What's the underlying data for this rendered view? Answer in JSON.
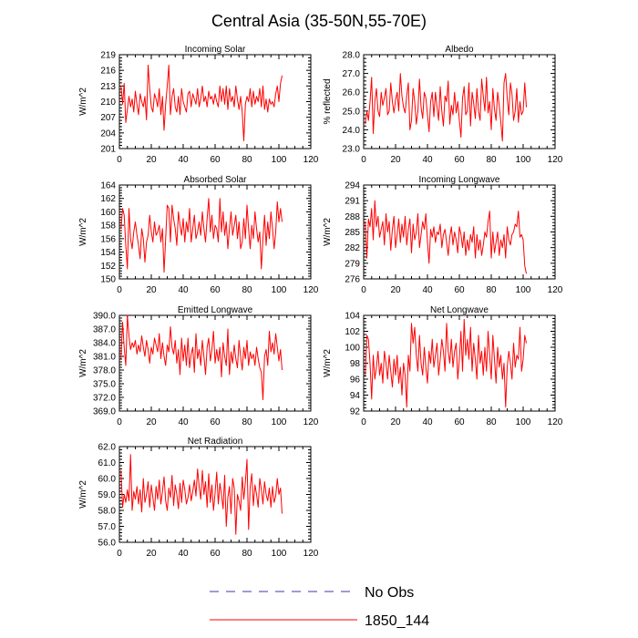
{
  "title": "Central Asia (35-50N,55-70E)",
  "legend": [
    {
      "label": "No Obs",
      "color": "#3838a8",
      "dash": "dashed"
    },
    {
      "label": "1850_144",
      "color": "#ff0000",
      "dash": "solid"
    }
  ],
  "chart_data": [
    {
      "type": "line",
      "title": "Incoming Solar",
      "ylabel": "W/m^2",
      "xlim": [
        0,
        120
      ],
      "ylim": [
        201,
        219
      ],
      "yticks": [
        "201",
        "204",
        "207",
        "210",
        "213",
        "216",
        "219"
      ],
      "xticks": [
        "0",
        "20",
        "40",
        "60",
        "80",
        "100",
        "120"
      ],
      "series": [
        {
          "name": "1850_144",
          "color": "#ff0000",
          "x_start": 1,
          "values": [
            213.0,
            209.5,
            213.5,
            206.0,
            208.5,
            211.0,
            209.0,
            210.5,
            208.0,
            212.0,
            209.5,
            207.5,
            211.5,
            210.0,
            209.0,
            211.0,
            206.5,
            217.0,
            212.5,
            209.0,
            208.0,
            211.5,
            210.5,
            209.0,
            212.5,
            207.5,
            211.0,
            204.5,
            209.5,
            213.0,
            217.0,
            207.5,
            211.0,
            212.5,
            209.0,
            208.0,
            211.0,
            207.5,
            212.5,
            210.0,
            209.0,
            208.0,
            211.5,
            212.0,
            209.0,
            211.5,
            210.5,
            209.5,
            212.5,
            209.0,
            210.5,
            213.0,
            210.0,
            211.0,
            209.0,
            212.0,
            210.5,
            211.0,
            209.5,
            211.5,
            210.0,
            209.0,
            213.0,
            210.0,
            212.5,
            209.5,
            213.0,
            208.5,
            212.5,
            210.0,
            211.0,
            209.0,
            213.0,
            210.5,
            208.5,
            211.0,
            208.0,
            202.5,
            209.5,
            211.0,
            210.0,
            212.5,
            209.0,
            212.0,
            209.5,
            211.0,
            210.0,
            212.5,
            209.0,
            213.0,
            208.5,
            210.5,
            208.0,
            210.5,
            209.5,
            210.0,
            209.0,
            211.5,
            213.0,
            210.0,
            213.5,
            215.0
          ]
        }
      ]
    },
    {
      "type": "line",
      "title": "Albedo",
      "ylabel": "% reflected",
      "xlim": [
        0,
        120
      ],
      "ylim": [
        23.0,
        28.0
      ],
      "yticks": [
        "23.0",
        "24.0",
        "25.0",
        "26.0",
        "27.0",
        "28.0"
      ],
      "xticks": [
        "0",
        "20",
        "40",
        "60",
        "80",
        "100",
        "120"
      ],
      "series": [
        {
          "name": "1850_144",
          "color": "#ff0000",
          "x_start": 1,
          "values": [
            24.3,
            25.0,
            24.5,
            25.5,
            26.8,
            23.8,
            25.5,
            26.2,
            25.0,
            24.7,
            26.0,
            25.3,
            25.7,
            26.2,
            24.8,
            25.0,
            26.5,
            25.5,
            24.9,
            25.6,
            26.0,
            25.0,
            27.0,
            25.8,
            25.2,
            24.9,
            25.8,
            26.5,
            24.0,
            24.5,
            26.2,
            25.5,
            24.3,
            25.0,
            26.7,
            25.2,
            24.6,
            26.0,
            25.7,
            24.8,
            23.9,
            25.5,
            26.0,
            24.7,
            26.0,
            25.2,
            24.5,
            26.3,
            25.0,
            24.2,
            25.8,
            25.5,
            26.6,
            24.3,
            25.3,
            24.8,
            26.0,
            24.9,
            25.5,
            24.5,
            23.6,
            25.7,
            26.3,
            24.8,
            25.0,
            26.5,
            24.2,
            26.0,
            25.4,
            24.6,
            26.2,
            25.0,
            24.5,
            26.7,
            25.8,
            25.0,
            26.8,
            24.9,
            25.5,
            24.0,
            26.2,
            25.1,
            24.5,
            26.0,
            25.3,
            24.4,
            23.4,
            26.5,
            27.0,
            25.7,
            24.8,
            26.5,
            25.9,
            24.5,
            25.0,
            26.2,
            24.4,
            25.5,
            24.8,
            25.0,
            26.5,
            25.2
          ]
        }
      ]
    },
    {
      "type": "line",
      "title": "Absorbed Solar",
      "ylabel": "W/m^2",
      "xlim": [
        0,
        120
      ],
      "ylim": [
        150,
        164
      ],
      "yticks": [
        "150",
        "152",
        "154",
        "156",
        "158",
        "160",
        "162",
        "164"
      ],
      "xticks": [
        "0",
        "20",
        "40",
        "60",
        "80",
        "100",
        "120"
      ],
      "series": [
        {
          "name": "1850_144",
          "color": "#ff0000",
          "x_start": 1,
          "values": [
            157.5,
            160.5,
            159.5,
            155.0,
            151.5,
            160.5,
            156.0,
            154.5,
            157.0,
            158.5,
            156.5,
            155.0,
            153.0,
            157.5,
            156.0,
            152.5,
            155.5,
            156.5,
            159.5,
            157.0,
            155.5,
            158.5,
            156.5,
            157.0,
            158.0,
            155.5,
            157.5,
            151.0,
            156.0,
            161.0,
            160.5,
            155.5,
            161.0,
            159.0,
            157.5,
            155.0,
            160.0,
            158.0,
            156.5,
            159.0,
            155.5,
            158.5,
            157.0,
            160.5,
            155.5,
            157.5,
            159.5,
            156.0,
            157.0,
            158.5,
            156.5,
            160.0,
            157.5,
            155.5,
            159.0,
            162.0,
            157.0,
            159.5,
            156.0,
            158.0,
            157.5,
            155.5,
            162.0,
            157.0,
            160.0,
            156.5,
            158.5,
            154.5,
            157.5,
            160.0,
            156.5,
            158.0,
            159.5,
            156.0,
            158.5,
            154.5,
            155.5,
            159.0,
            156.0,
            161.0,
            157.5,
            154.5,
            158.0,
            156.0,
            160.0,
            157.5,
            155.5,
            157.0,
            151.5,
            156.0,
            159.5,
            155.0,
            158.5,
            156.0,
            160.0,
            157.5,
            154.5,
            157.0,
            161.5,
            158.5,
            160.5,
            158.5
          ]
        }
      ]
    },
    {
      "type": "line",
      "title": "Incoming Longwave",
      "ylabel": "W/m^2",
      "xlim": [
        0,
        120
      ],
      "ylim": [
        276,
        294
      ],
      "yticks": [
        "276",
        "279",
        "282",
        "285",
        "288",
        "291",
        "294"
      ],
      "xticks": [
        "0",
        "20",
        "40",
        "60",
        "80",
        "100",
        "120"
      ],
      "series": [
        {
          "name": "1850_144",
          "color": "#ff0000",
          "x_start": 1,
          "values": [
            287.0,
            280.0,
            287.5,
            286.0,
            289.5,
            283.5,
            291.0,
            286.0,
            288.0,
            284.0,
            285.5,
            287.0,
            282.5,
            288.5,
            285.0,
            287.0,
            281.5,
            285.5,
            288.0,
            282.0,
            284.5,
            287.5,
            283.0,
            286.5,
            284.0,
            288.0,
            282.5,
            285.5,
            287.5,
            281.0,
            286.5,
            283.5,
            285.0,
            288.5,
            282.0,
            284.5,
            287.0,
            285.5,
            288.5,
            283.0,
            279.0,
            285.5,
            284.0,
            286.0,
            283.0,
            285.0,
            284.5,
            286.5,
            282.0,
            284.5,
            285.5,
            283.0,
            280.5,
            284.0,
            286.0,
            282.5,
            285.0,
            283.5,
            281.0,
            286.0,
            284.5,
            282.0,
            285.0,
            280.5,
            283.5,
            281.5,
            284.5,
            283.0,
            286.0,
            280.0,
            284.5,
            281.5,
            283.5,
            280.5,
            282.5,
            285.0,
            284.0,
            287.0,
            289.0,
            280.0,
            285.0,
            281.0,
            283.0,
            285.0,
            280.5,
            283.5,
            282.0,
            284.5,
            280.0,
            286.0,
            283.5,
            282.5,
            284.5,
            285.0,
            286.5,
            286.0,
            289.0,
            284.0,
            284.5,
            283.5,
            278.5,
            277.0
          ]
        }
      ]
    },
    {
      "type": "line",
      "title": "Emitted Longwave",
      "ylabel": "W/m^2",
      "xlim": [
        0,
        120
      ],
      "ylim": [
        369.0,
        390.0
      ],
      "yticks": [
        "369.0",
        "372.0",
        "375.0",
        "378.0",
        "381.0",
        "384.0",
        "387.0",
        "390.0"
      ],
      "xticks": [
        "0",
        "20",
        "40",
        "60",
        "80",
        "100",
        "120"
      ],
      "series": [
        {
          "name": "1850_144",
          "color": "#ff0000",
          "x_start": 1,
          "values": [
            380.5,
            388.5,
            383.0,
            379.0,
            390.0,
            385.5,
            382.5,
            384.0,
            383.0,
            384.5,
            381.5,
            383.5,
            382.0,
            385.5,
            383.0,
            381.0,
            384.5,
            382.5,
            379.5,
            383.0,
            381.5,
            385.0,
            383.5,
            382.0,
            386.0,
            380.5,
            384.0,
            381.0,
            379.0,
            383.5,
            382.0,
            387.5,
            383.0,
            381.5,
            384.5,
            379.5,
            382.5,
            377.0,
            385.0,
            380.0,
            383.5,
            379.0,
            385.0,
            378.5,
            381.5,
            383.0,
            377.5,
            386.0,
            380.5,
            382.5,
            379.0,
            384.5,
            381.0,
            377.0,
            383.0,
            385.0,
            380.0,
            382.5,
            386.5,
            379.5,
            382.5,
            380.0,
            383.0,
            376.5,
            384.0,
            381.0,
            379.0,
            387.0,
            377.0,
            382.0,
            379.5,
            383.5,
            380.5,
            378.5,
            384.5,
            381.0,
            378.0,
            383.0,
            380.5,
            384.5,
            379.0,
            382.0,
            380.5,
            381.5,
            379.0,
            383.0,
            380.5,
            378.5,
            377.5,
            371.5,
            381.0,
            382.5,
            379.0,
            386.5,
            382.0,
            384.0,
            381.5,
            386.0,
            383.0,
            380.0,
            382.5,
            378.0
          ]
        }
      ]
    },
    {
      "type": "line",
      "title": "Net Longwave",
      "ylabel": "W/m^2",
      "xlim": [
        0,
        120
      ],
      "ylim": [
        92,
        104
      ],
      "yticks": [
        "92",
        "94",
        "96",
        "98",
        "100",
        "102",
        "104"
      ],
      "xticks": [
        "0",
        "20",
        "40",
        "60",
        "80",
        "100",
        "120"
      ],
      "series": [
        {
          "name": "1850_144",
          "color": "#ff0000",
          "x_start": 1,
          "values": [
            96.5,
            101.5,
            101.0,
            98.0,
            93.5,
            99.0,
            96.0,
            97.5,
            99.5,
            96.5,
            98.0,
            95.5,
            99.5,
            98.0,
            96.0,
            99.0,
            97.0,
            95.0,
            98.5,
            96.5,
            99.0,
            95.5,
            97.5,
            94.0,
            98.0,
            96.5,
            92.5,
            99.0,
            97.0,
            103.0,
            100.5,
            102.5,
            99.0,
            97.0,
            101.5,
            98.0,
            96.5,
            100.0,
            97.5,
            95.5,
            99.5,
            98.0,
            101.0,
            97.5,
            99.0,
            100.5,
            96.5,
            98.5,
            101.0,
            99.5,
            97.0,
            103.0,
            99.5,
            98.0,
            101.0,
            97.5,
            99.5,
            100.5,
            96.0,
            98.5,
            102.0,
            97.0,
            103.5,
            99.0,
            101.0,
            98.5,
            102.5,
            97.0,
            100.5,
            98.5,
            96.0,
            101.5,
            98.0,
            99.5,
            96.5,
            100.0,
            97.0,
            102.0,
            99.0,
            96.0,
            101.5,
            98.5,
            95.5,
            100.0,
            97.5,
            99.0,
            96.0,
            98.0,
            92.5,
            97.5,
            99.5,
            98.0,
            96.0,
            100.5,
            97.5,
            99.0,
            98.5,
            102.5,
            97.0,
            98.5,
            101.5,
            100.5
          ]
        }
      ]
    },
    {
      "type": "line",
      "title": "Net Radiation",
      "ylabel": "W/m^2",
      "xlim": [
        0,
        120
      ],
      "ylim": [
        56.0,
        62.0
      ],
      "yticks": [
        "56.0",
        "57.0",
        "58.0",
        "59.0",
        "60.0",
        "61.0",
        "62.0"
      ],
      "xticks": [
        "0",
        "20",
        "40",
        "60",
        "80",
        "100",
        "120"
      ],
      "series": [
        {
          "name": "1850_144",
          "color": "#ff0000",
          "x_start": 1,
          "values": [
            60.5,
            58.2,
            59.0,
            58.5,
            59.3,
            58.6,
            61.5,
            58.0,
            59.2,
            58.7,
            59.5,
            58.4,
            59.3,
            57.9,
            60.0,
            58.5,
            59.0,
            59.8,
            58.2,
            59.6,
            58.8,
            58.0,
            59.5,
            58.7,
            59.9,
            58.4,
            59.2,
            60.1,
            58.6,
            58.0,
            59.4,
            58.8,
            60.2,
            58.3,
            59.6,
            59.0,
            58.1,
            59.7,
            58.5,
            59.9,
            59.3,
            58.4,
            58.8,
            59.6,
            58.6,
            59.2,
            59.9,
            58.9,
            60.6,
            59.5,
            58.7,
            60.5,
            59.0,
            59.8,
            58.2,
            60.3,
            58.5,
            59.6,
            58.0,
            59.1,
            60.4,
            58.4,
            59.7,
            59.0,
            58.1,
            60.2,
            57.0,
            58.8,
            59.5,
            57.8,
            60.0,
            59.4,
            56.5,
            59.0,
            58.6,
            58.0,
            60.1,
            58.7,
            59.8,
            61.2,
            56.8,
            59.5,
            60.3,
            58.3,
            59.6,
            59.0,
            58.2,
            60.0,
            59.3,
            58.4,
            59.8,
            59.0,
            58.6,
            59.4,
            58.2,
            59.5,
            58.5,
            58.9,
            60.0,
            59.0,
            59.4,
            57.8
          ]
        }
      ]
    }
  ]
}
